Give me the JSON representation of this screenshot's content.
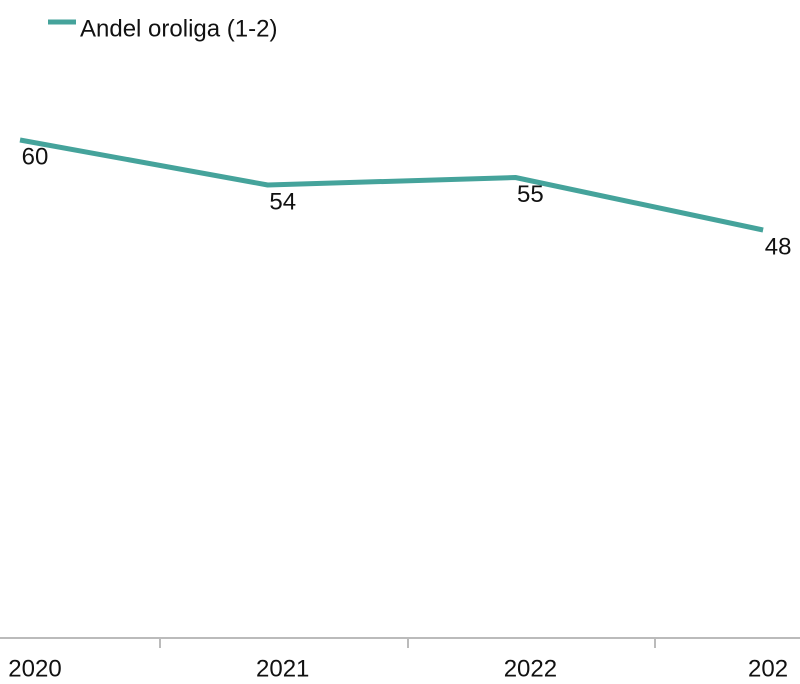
{
  "chart_data": {
    "type": "line",
    "categories": [
      "2020",
      "2021",
      "2022",
      "202"
    ],
    "series": [
      {
        "name": "Andel oroliga (1-2)",
        "color": "#45a39b",
        "values": [
          60,
          54,
          55,
          48
        ]
      }
    ],
    "ylim": [
      0,
      80
    ],
    "legend": "top-left"
  }
}
